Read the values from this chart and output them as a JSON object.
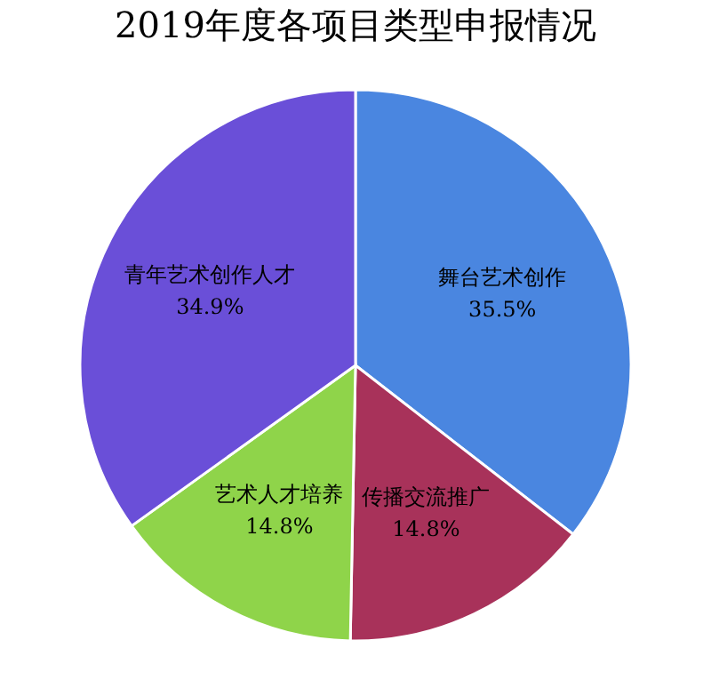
{
  "chart_data": {
    "type": "pie",
    "title": "2019年度各项目类型申报情况",
    "categories": [
      "舞台艺术创作",
      "传播交流推广",
      "艺术人才培养",
      "青年艺术创作人才"
    ],
    "values": [
      35.5,
      14.8,
      14.8,
      34.9
    ],
    "value_labels": [
      "35.5%",
      "14.8%",
      "14.8%",
      "34.9%"
    ],
    "colors": [
      "#4a86e0",
      "#a8325a",
      "#8fd44a",
      "#6a4fd8"
    ],
    "legend": false
  }
}
